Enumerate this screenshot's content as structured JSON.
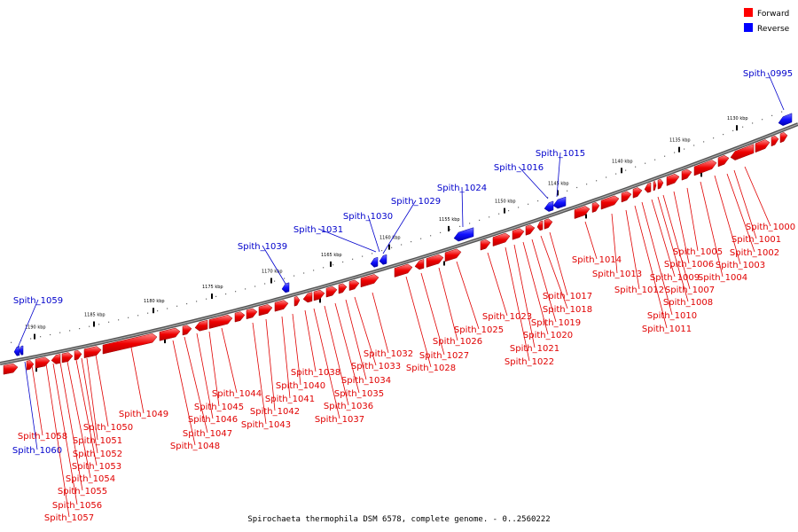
{
  "legend": {
    "forward_label": "Forward",
    "reverse_label": "Reverse",
    "forward_color": "#ff0000",
    "reverse_color": "#0000ff"
  },
  "caption": "Spirochaeta thermophila DSM 6578, complete genome. - 0..2560222",
  "ticks": [
    "1130 kbp",
    "1135 kbp",
    "1140 kbp",
    "1145 kbp",
    "1150 kbp",
    "1155 kbp",
    "1160 kbp",
    "1165 kbp",
    "1170 kbp",
    "1175 kbp",
    "1180 kbp",
    "1185 kbp",
    "1190 kbp"
  ],
  "reverse_genes": [
    "Spith_0995",
    "Spith_1015",
    "Spith_1016",
    "Spith_1024",
    "Spith_1029",
    "Spith_1030",
    "Spith_1031",
    "Spith_1039",
    "Spith_1059",
    "Spith_1060"
  ],
  "forward_genes": [
    "Spith_1000",
    "Spith_1001",
    "Spith_1002",
    "Spith_1003",
    "Spith_1004",
    "Spith_1005",
    "Spith_1006",
    "Spith_1007",
    "Spith_1008",
    "Spith_1009",
    "Spith_1010",
    "Spith_1011",
    "Spith_1012",
    "Spith_1013",
    "Spith_1014",
    "Spith_1017",
    "Spith_1018",
    "Spith_1019",
    "Spith_1020",
    "Spith_1021",
    "Spith_1022",
    "Spith_1023",
    "Spith_1025",
    "Spith_1026",
    "Spith_1027",
    "Spith_1028",
    "Spith_1032",
    "Spith_1033",
    "Spith_1034",
    "Spith_1035",
    "Spith_1036",
    "Spith_1037",
    "Spith_1038",
    "Spith_1040",
    "Spith_1041",
    "Spith_1042",
    "Spith_1043",
    "Spith_1044",
    "Spith_1045",
    "Spith_1046",
    "Spith_1047",
    "Spith_1048",
    "Spith_1049",
    "Spith_1050",
    "Spith_1051",
    "Spith_1052",
    "Spith_1053",
    "Spith_1054",
    "Spith_1055",
    "Spith_1056",
    "Spith_1057",
    "Spith_1058"
  ]
}
